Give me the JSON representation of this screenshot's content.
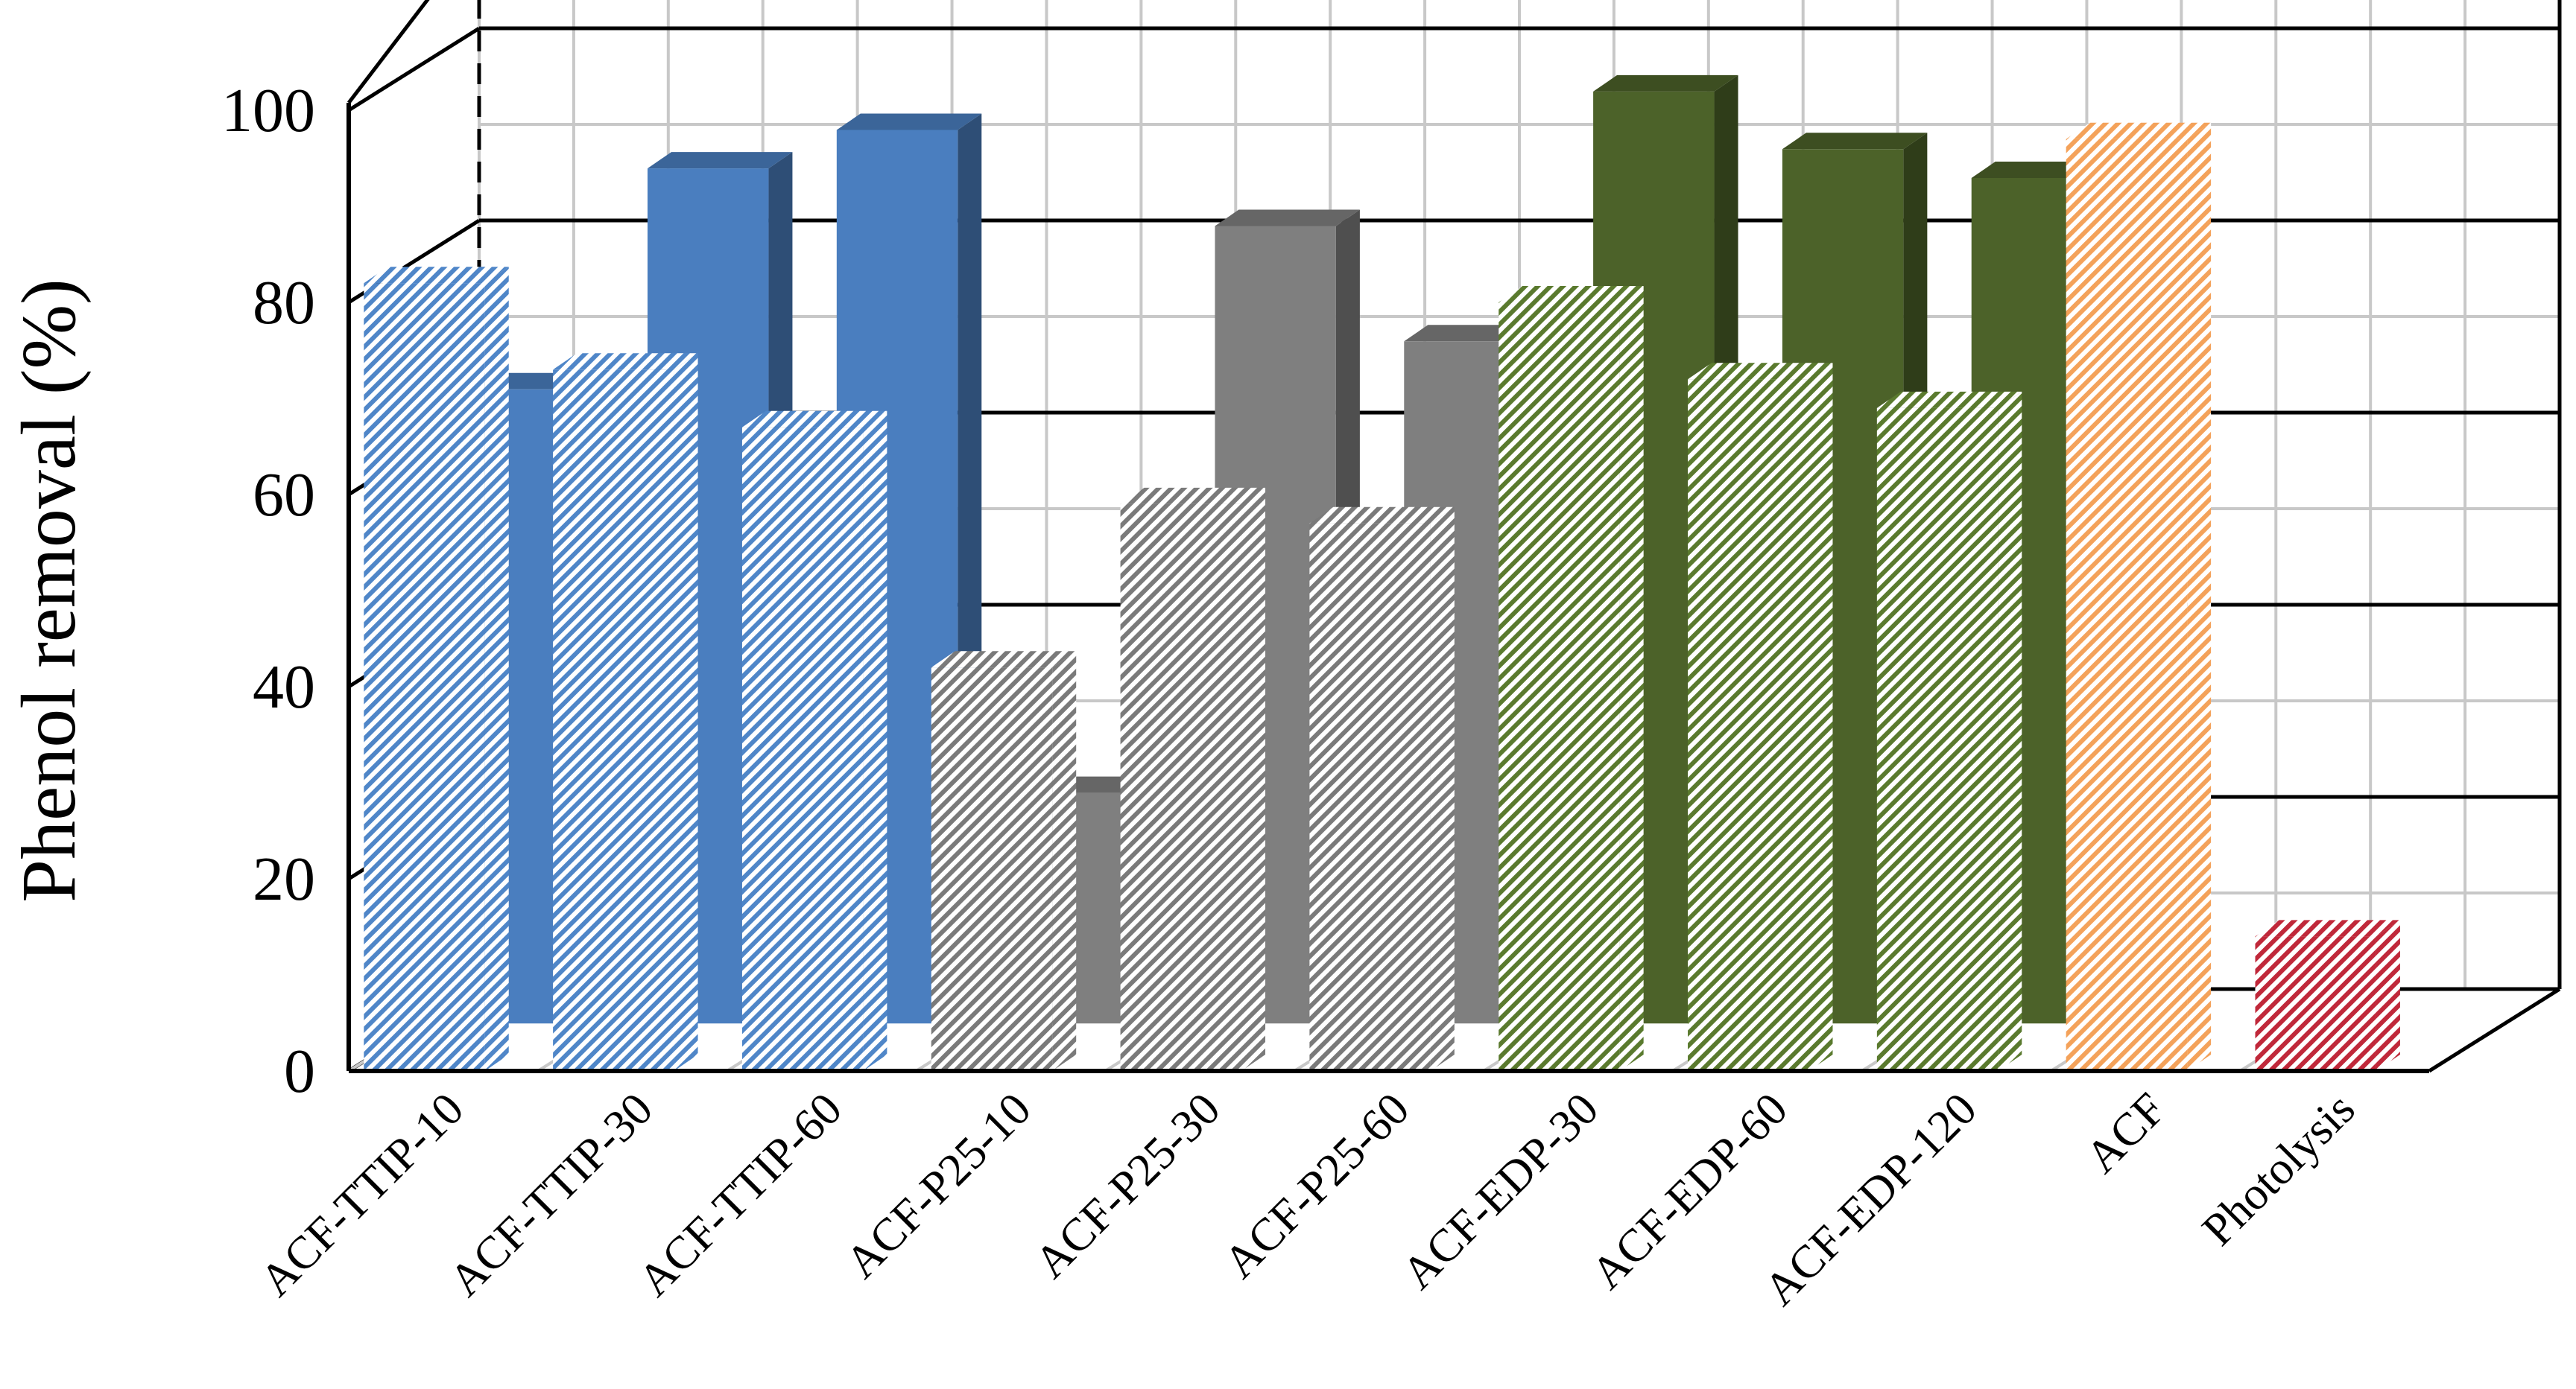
{
  "chart_data": {
    "type": "bar",
    "title": "",
    "xlabel": "",
    "ylabel": "Phenol removal (%)",
    "ylim": [
      0,
      100
    ],
    "yticks": [
      "0",
      "20",
      "40",
      "60",
      "80",
      "100"
    ],
    "grid": true,
    "categories": [
      "ACF-TTIP-10",
      "ACF-TTIP-30",
      "ACF-TTIP-60",
      "ACF-P25-10",
      "ACF-P25-30",
      "ACF-P25-60",
      "ACF-EDP-30",
      "ACF-EDP-60",
      "ACF-EDP-120",
      "ACF",
      "Photolysis"
    ],
    "front_series": {
      "values": [
        82,
        73,
        67,
        42,
        59,
        57,
        80,
        72,
        69,
        97,
        14
      ],
      "colors": [
        "#5b8fd0",
        "#5b8fd0",
        "#5b8fd0",
        "#8c8c8c",
        "#8c8c8c",
        "#8c8c8c",
        "#6b8a3a",
        "#6b8a3a",
        "#6b8a3a",
        "#f5a55a",
        "#c0283a"
      ]
    },
    "back_series": {
      "values": [
        66,
        89,
        93,
        24,
        83,
        71,
        97,
        91,
        88,
        null,
        null
      ],
      "colors": [
        "#4a7ebf",
        "#4a7ebf",
        "#4a7ebf",
        "#7f7f7f",
        "#7f7f7f",
        "#7f7f7f",
        "#4c6229",
        "#4c6229",
        "#4c6229",
        null,
        null
      ]
    }
  }
}
